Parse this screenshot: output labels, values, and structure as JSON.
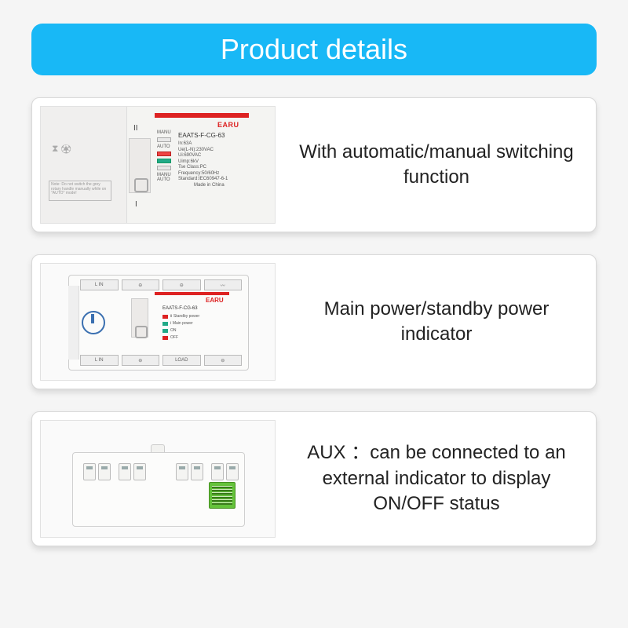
{
  "header": {
    "title": "Product details",
    "bg_color": "#18b8f6",
    "text_color": "#ffffff"
  },
  "brand": "EARU",
  "model": "EAATS-F-CG-63",
  "specs_text": "In:63A\nUe(L-N):230VAC\nUi:690VAC\nUimp:6kV\nTse Class:PC\nFrequency:50/60Hz\nStandard:IEC60947-6-1\n            Made in China",
  "switch_labels": {
    "manu": "MANU",
    "auto": "AUTO",
    "II": "II",
    "I": "I"
  },
  "note_text": "Note: Do not switch the grey rotary handle manually while on \"AUTO\" mode!",
  "terminals": {
    "lin": "L IN",
    "load": "LOAD"
  },
  "led_rows": [
    {
      "color": "#d22",
      "label": "Ⅱ Standby power"
    },
    {
      "color": "#2a8",
      "label": "Ⅰ Main power"
    },
    {
      "color": "#2a8",
      "label": "ON"
    },
    {
      "color": "#d22",
      "label": "OFF"
    }
  ],
  "colors": {
    "brand_red": "#d22",
    "led_green": "#2a8",
    "aux_green": "#64c23a"
  },
  "cards": [
    {
      "desc": "With automatic/manual switching function"
    },
    {
      "desc": "Main power/standby power indicator"
    },
    {
      "desc": "AUX ：can be connected to an external indicator to display ON/OFF status"
    }
  ]
}
